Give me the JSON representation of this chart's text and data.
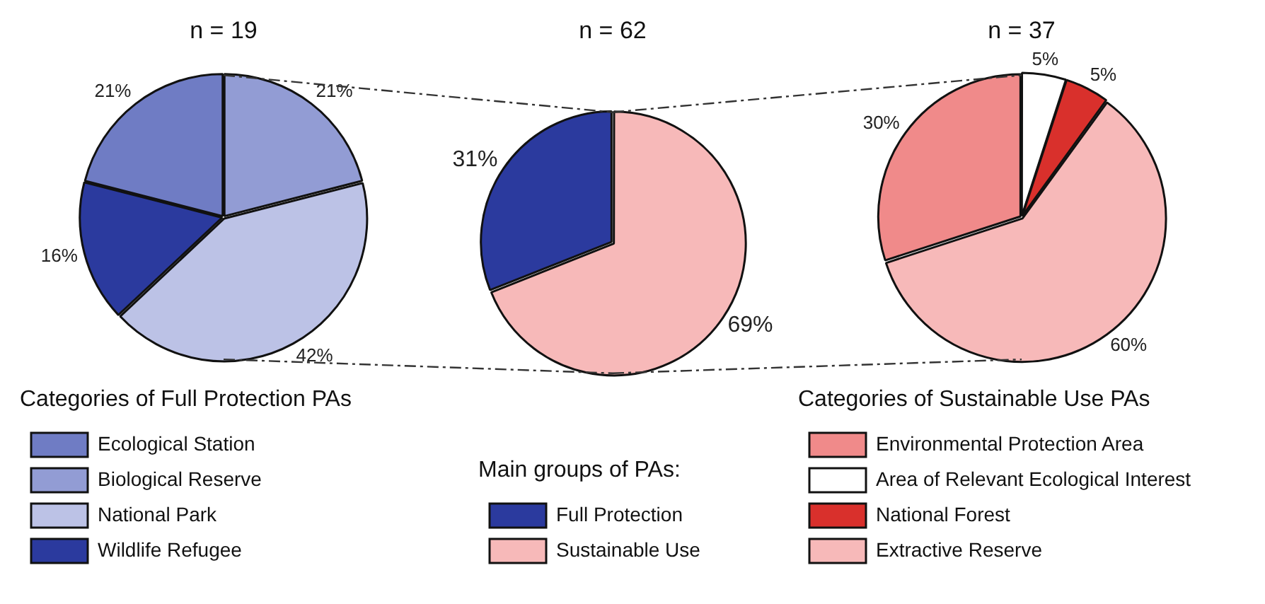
{
  "chart_data": [
    {
      "type": "pie",
      "title": "n = 19",
      "legend_title": "Categories of Full Protection PAs",
      "legend": "bottom",
      "categories": [
        "Ecological Station",
        "Biological Reserve",
        "National Park",
        "Wildlife Refugee"
      ],
      "values": [
        21,
        21,
        42,
        16
      ],
      "value_labels": [
        "21%",
        "21%",
        "42%",
        "16%"
      ],
      "colors": [
        "#6f7cc4",
        "#929cd4",
        "#bcc2e6",
        "#2b3a9e"
      ]
    },
    {
      "type": "pie",
      "title": "n = 62",
      "legend_title": "Main groups of PAs:",
      "legend": "bottom",
      "categories": [
        "Full Protection",
        "Sustainable Use"
      ],
      "values": [
        31,
        69
      ],
      "value_labels": [
        "31%",
        "69%"
      ],
      "colors": [
        "#2b3a9e",
        "#f7b9b9"
      ]
    },
    {
      "type": "pie",
      "title": "n = 37",
      "legend_title": "Categories of Sustainable Use PAs",
      "legend": "bottom",
      "categories": [
        "Environmental Protection Area",
        "Area of Relevant Ecological Interest",
        "National Forest",
        "Extractive Reserve"
      ],
      "values": [
        30,
        5,
        5,
        60
      ],
      "value_labels": [
        "30%",
        "5%",
        "5%",
        "60%"
      ],
      "colors": [
        "#f08a8a",
        "#ffffff",
        "#d9302c",
        "#f7b9b9"
      ]
    }
  ]
}
